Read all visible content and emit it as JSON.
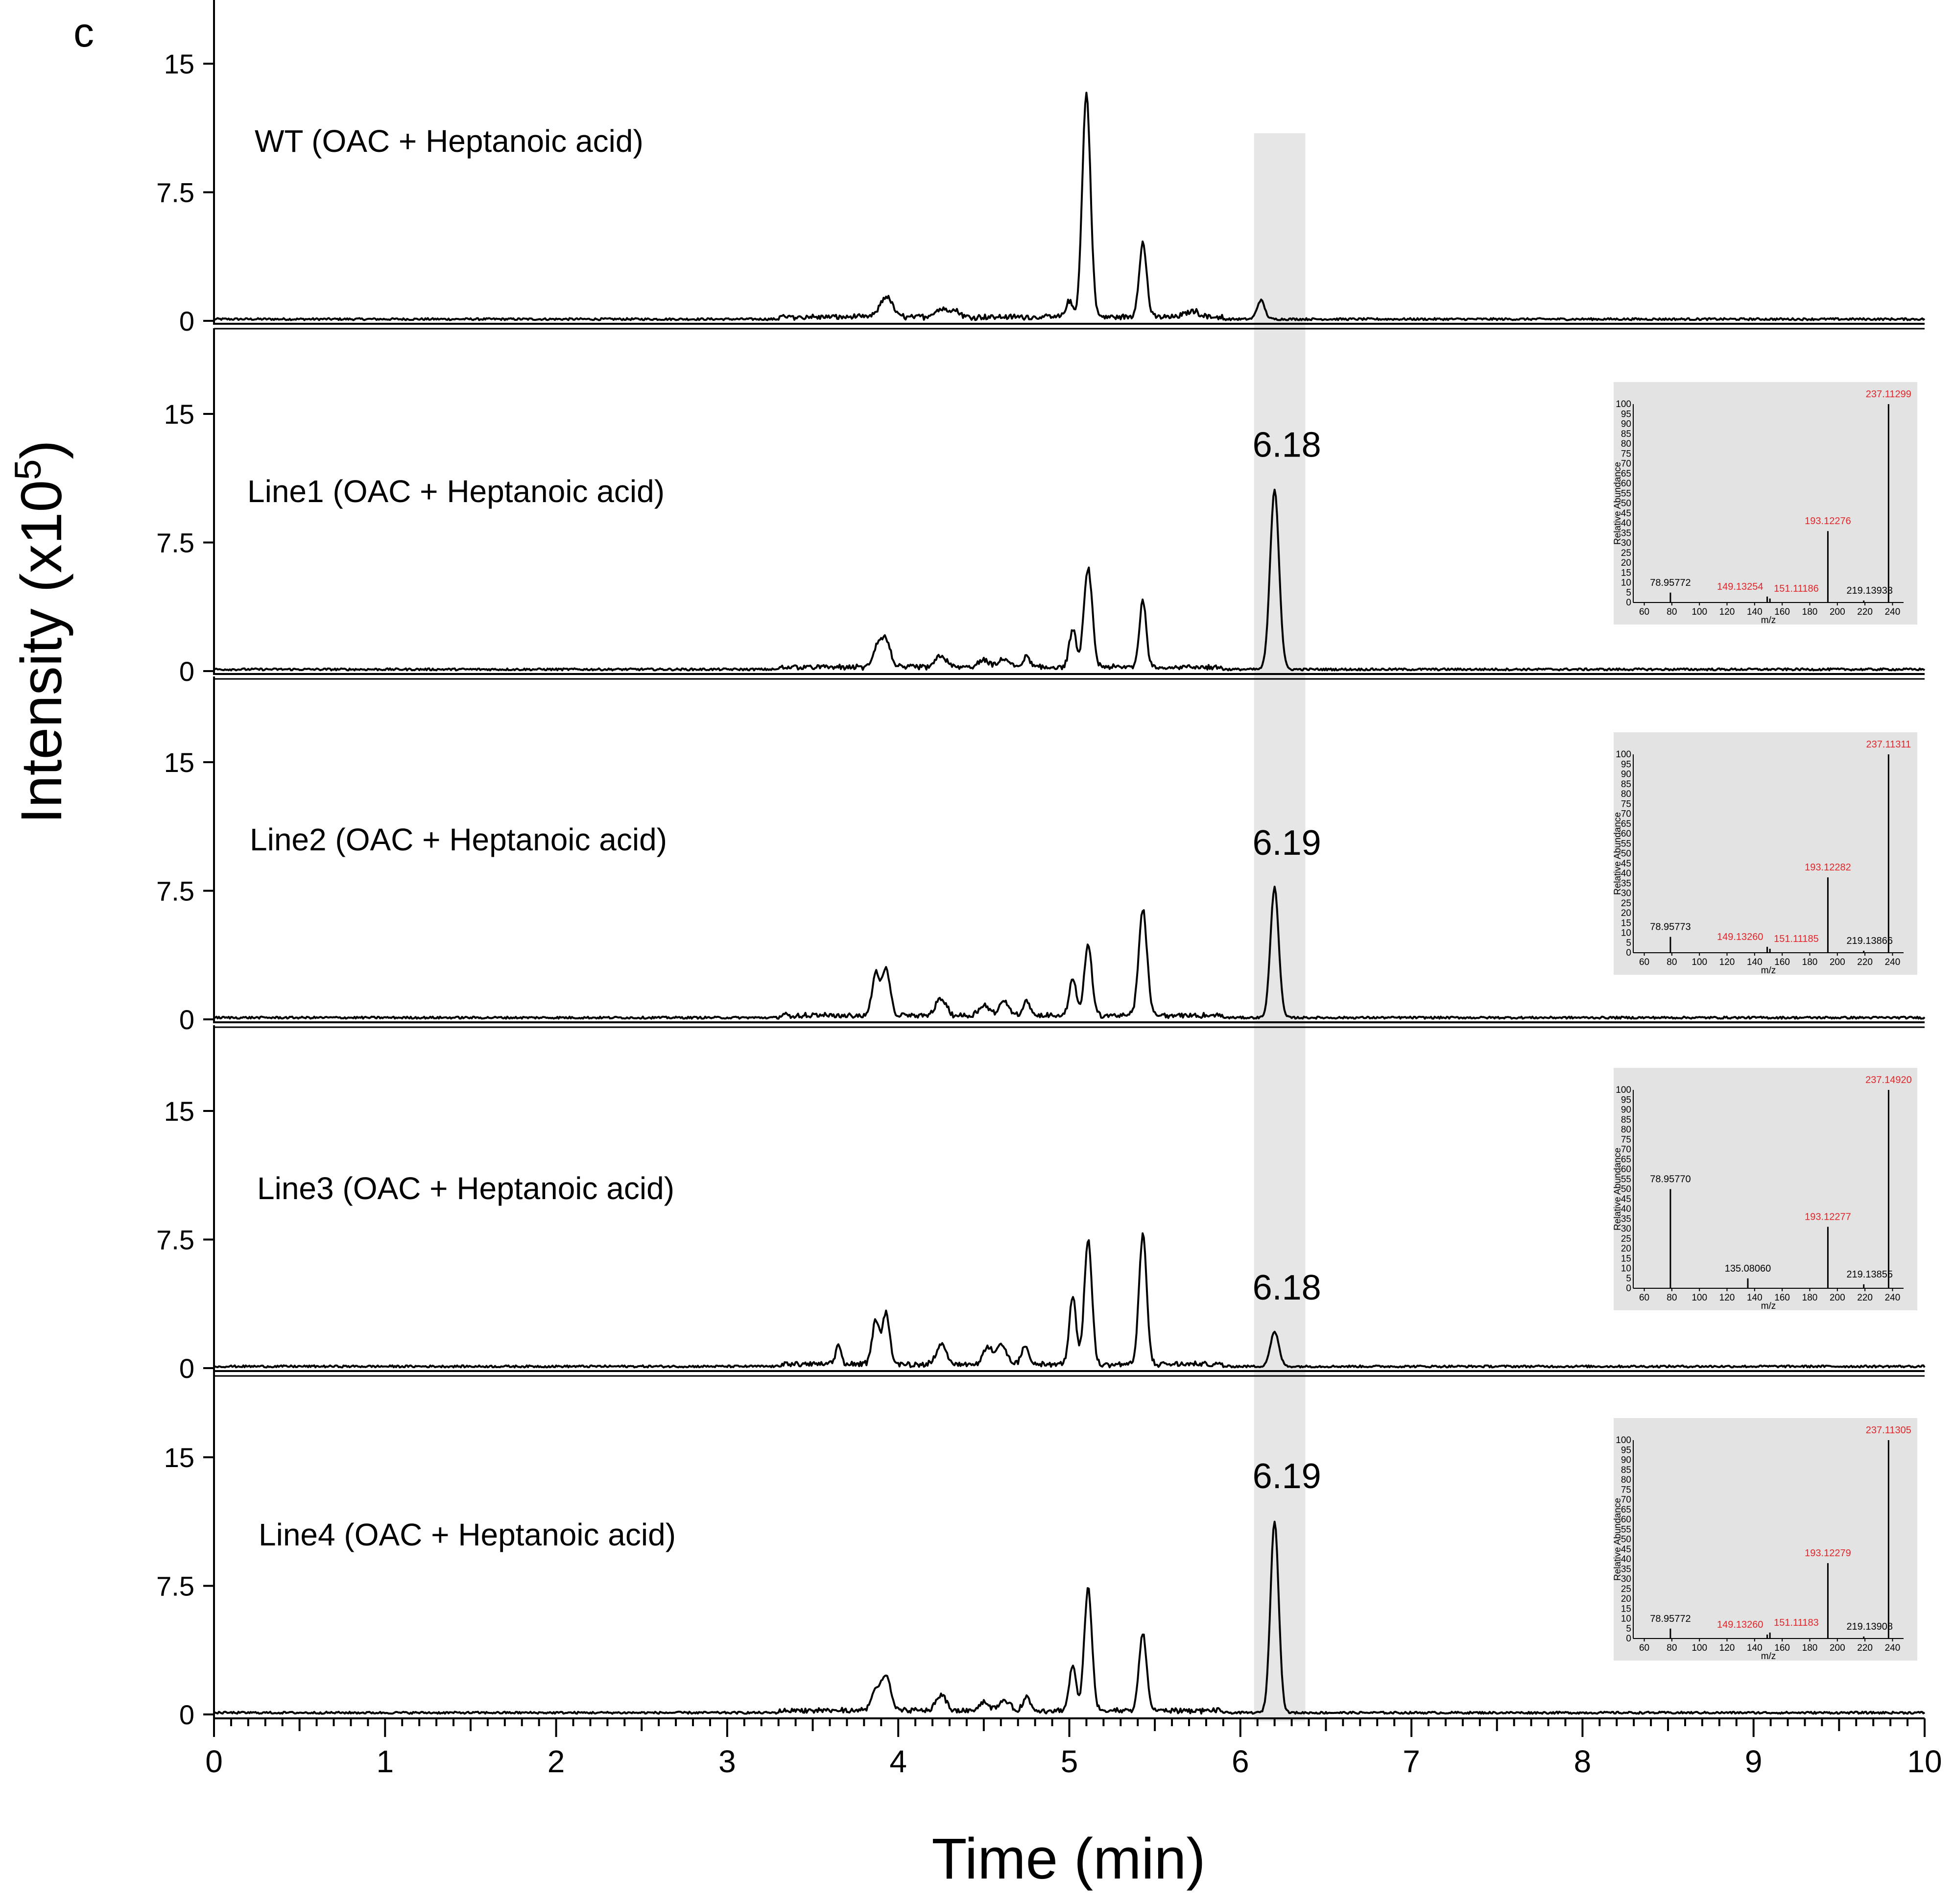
{
  "figure_label": "c",
  "chart_data": {
    "type": "line",
    "title": "",
    "xlabel": "Time (min)",
    "ylabel_prefix": "Intensity (x10",
    "ylabel_exponent": "5",
    "ylabel_suffix": ")",
    "xlim": [
      0,
      10
    ],
    "x_ticks": [
      "0",
      "1",
      "2",
      "3",
      "4",
      "5",
      "6",
      "7",
      "8",
      "9",
      "10"
    ],
    "ylim": [
      0,
      20
    ],
    "y_ticks": [
      {
        "value": 0,
        "label": "0"
      },
      {
        "value": 7.5,
        "label": "7.5"
      },
      {
        "value": 15,
        "label": "15"
      }
    ],
    "highlight_band": {
      "from": 6.08,
      "to": 6.38,
      "color": "#e6e6e6"
    },
    "series": [
      {
        "name": "WT (OAC + Heptanoic acid)",
        "peaks": [
          [
            3.93,
            1.2,
            0.035
          ],
          [
            4.25,
            0.45,
            0.04
          ],
          [
            4.33,
            0.35,
            0.03
          ],
          [
            5.0,
            0.9,
            0.02
          ],
          [
            5.1,
            13.0,
            0.024
          ],
          [
            5.43,
            4.3,
            0.022
          ],
          [
            5.72,
            0.35,
            0.04
          ],
          [
            6.12,
            1.1,
            0.022
          ]
        ],
        "peak_label": null,
        "inset": null
      },
      {
        "name": "Line1 (OAC + Heptanoic acid)",
        "peaks": [
          [
            3.88,
            1.3,
            0.025
          ],
          [
            3.93,
            1.5,
            0.025
          ],
          [
            4.25,
            0.7,
            0.03
          ],
          [
            4.5,
            0.4,
            0.03
          ],
          [
            4.62,
            0.5,
            0.03
          ],
          [
            4.75,
            0.6,
            0.02
          ],
          [
            5.02,
            2.2,
            0.02
          ],
          [
            5.11,
            5.8,
            0.024
          ],
          [
            5.43,
            3.9,
            0.02
          ],
          [
            6.2,
            10.5,
            0.026
          ]
        ],
        "peak_label": "6.18",
        "inset": {
          "ylabel": "Relative Abundance",
          "xlabel": "m/z",
          "x_ticks": [
            "60",
            "80",
            "100",
            "120",
            "140",
            "160",
            "180",
            "200",
            "220",
            "240"
          ],
          "y_ticks": [
            "0",
            "5",
            "10",
            "15",
            "20",
            "25",
            "30",
            "35",
            "40",
            "45",
            "50",
            "55",
            "60",
            "65",
            "70",
            "75",
            "80",
            "85",
            "90",
            "95",
            "100"
          ],
          "peaks": [
            {
              "mz": 78.95772,
              "ri": 5,
              "label": "78.95772",
              "color": "#000000"
            },
            {
              "mz": 149.13254,
              "ri": 3,
              "label": "149.13254",
              "color": "#e0262a"
            },
            {
              "mz": 151.11186,
              "ri": 2,
              "label": "151.11186",
              "color": "#e0262a"
            },
            {
              "mz": 193.12276,
              "ri": 36,
              "label": "193.12276",
              "color": "#e0262a"
            },
            {
              "mz": 219.13933,
              "ri": 1,
              "label": "219.13933",
              "color": "#000000"
            },
            {
              "mz": 237.11299,
              "ri": 100,
              "label": "237.11299",
              "color": "#e0262a"
            }
          ]
        }
      },
      {
        "name": "Line2 (OAC + Heptanoic acid)",
        "peaks": [
          [
            3.87,
            2.5,
            0.022
          ],
          [
            3.93,
            2.7,
            0.022
          ],
          [
            4.25,
            1.0,
            0.03
          ],
          [
            4.5,
            0.6,
            0.03
          ],
          [
            4.62,
            0.8,
            0.03
          ],
          [
            4.75,
            0.9,
            0.02
          ],
          [
            5.02,
            2.2,
            0.02
          ],
          [
            5.11,
            4.1,
            0.022
          ],
          [
            5.43,
            6.2,
            0.024
          ],
          [
            6.2,
            7.6,
            0.024
          ]
        ],
        "peak_label": "6.19",
        "inset": {
          "ylabel": "Relative Abundance",
          "xlabel": "m/z",
          "x_ticks": [
            "60",
            "80",
            "100",
            "120",
            "140",
            "160",
            "180",
            "200",
            "220",
            "240"
          ],
          "y_ticks": [
            "0",
            "5",
            "10",
            "15",
            "20",
            "25",
            "30",
            "35",
            "40",
            "45",
            "50",
            "55",
            "60",
            "65",
            "70",
            "75",
            "80",
            "85",
            "90",
            "95",
            "100"
          ],
          "peaks": [
            {
              "mz": 78.95773,
              "ri": 8,
              "label": "78.95773",
              "color": "#000000"
            },
            {
              "mz": 149.1326,
              "ri": 3,
              "label": "149.13260",
              "color": "#e0262a"
            },
            {
              "mz": 151.11185,
              "ri": 2,
              "label": "151.11185",
              "color": "#e0262a"
            },
            {
              "mz": 193.12282,
              "ri": 38,
              "label": "193.12282",
              "color": "#e0262a"
            },
            {
              "mz": 219.13866,
              "ri": 1,
              "label": "219.13866",
              "color": "#000000"
            },
            {
              "mz": 237.11311,
              "ri": 100,
              "label": "237.11311",
              "color": "#e0262a"
            }
          ]
        }
      },
      {
        "name": "Line3 (OAC + Heptanoic acid)",
        "peaks": [
          [
            3.65,
            1.2,
            0.015
          ],
          [
            3.87,
            2.6,
            0.022
          ],
          [
            3.93,
            3.0,
            0.02
          ],
          [
            4.25,
            1.1,
            0.03
          ],
          [
            4.52,
            1.0,
            0.025
          ],
          [
            4.6,
            1.2,
            0.03
          ],
          [
            4.74,
            1.0,
            0.02
          ],
          [
            5.02,
            4.0,
            0.02
          ],
          [
            5.11,
            7.3,
            0.022
          ],
          [
            5.43,
            7.6,
            0.022
          ],
          [
            6.2,
            2.0,
            0.025
          ]
        ],
        "peak_label": "6.18",
        "inset": {
          "ylabel": "Relative Abundance",
          "xlabel": "m/z",
          "x_ticks": [
            "60",
            "80",
            "100",
            "120",
            "140",
            "160",
            "180",
            "200",
            "220",
            "240"
          ],
          "y_ticks": [
            "0",
            "5",
            "10",
            "15",
            "20",
            "25",
            "30",
            "35",
            "40",
            "45",
            "50",
            "55",
            "60",
            "65",
            "70",
            "75",
            "80",
            "85",
            "90",
            "95",
            "100"
          ],
          "peaks": [
            {
              "mz": 78.9577,
              "ri": 50,
              "label": "78.95770",
              "color": "#000000"
            },
            {
              "mz": 135.0806,
              "ri": 5,
              "label": "135.08060",
              "color": "#000000"
            },
            {
              "mz": 193.12277,
              "ri": 31,
              "label": "193.12277",
              "color": "#e0262a"
            },
            {
              "mz": 219.13855,
              "ri": 2,
              "label": "219.13855",
              "color": "#000000"
            },
            {
              "mz": 237.1492,
              "ri": 100,
              "label": "237.14920",
              "color": "#e0262a"
            }
          ]
        }
      },
      {
        "name": "Line4 (OAC + Heptanoic acid)",
        "peaks": [
          [
            3.87,
            1.3,
            0.025
          ],
          [
            3.93,
            2.0,
            0.025
          ],
          [
            4.25,
            0.9,
            0.03
          ],
          [
            4.5,
            0.5,
            0.03
          ],
          [
            4.62,
            0.6,
            0.03
          ],
          [
            4.75,
            0.8,
            0.02
          ],
          [
            5.02,
            2.6,
            0.02
          ],
          [
            5.11,
            7.2,
            0.022
          ],
          [
            5.43,
            4.5,
            0.022
          ],
          [
            6.2,
            11.2,
            0.024
          ]
        ],
        "peak_label": "6.19",
        "inset": {
          "ylabel": "Relative Abundance",
          "xlabel": "m/z",
          "x_ticks": [
            "60",
            "80",
            "100",
            "120",
            "140",
            "160",
            "180",
            "200",
            "220",
            "240"
          ],
          "y_ticks": [
            "0",
            "5",
            "10",
            "15",
            "20",
            "25",
            "30",
            "35",
            "40",
            "45",
            "50",
            "55",
            "60",
            "65",
            "70",
            "75",
            "80",
            "85",
            "90",
            "95",
            "100"
          ],
          "peaks": [
            {
              "mz": 78.95772,
              "ri": 5,
              "label": "78.95772",
              "color": "#000000"
            },
            {
              "mz": 149.1326,
              "ri": 2,
              "label": "149.13260",
              "color": "#e0262a"
            },
            {
              "mz": 151.11183,
              "ri": 3,
              "label": "151.11183",
              "color": "#e0262a"
            },
            {
              "mz": 193.12279,
              "ri": 38,
              "label": "193.12279",
              "color": "#e0262a"
            },
            {
              "mz": 219.13908,
              "ri": 1,
              "label": "219.13908",
              "color": "#000000"
            },
            {
              "mz": 237.11305,
              "ri": 100,
              "label": "237.11305",
              "color": "#e0262a"
            }
          ]
        }
      }
    ]
  }
}
